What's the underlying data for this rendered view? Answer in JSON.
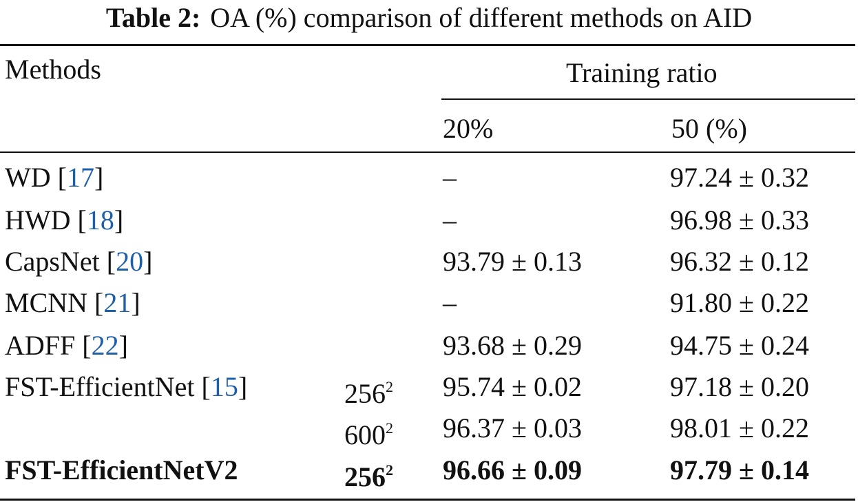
{
  "caption": {
    "label": "Table 2:",
    "text": "OA (%) comparison of different methods on AID"
  },
  "header": {
    "methods": "Methods",
    "training_ratio": "Training ratio",
    "col_20": "20%",
    "col_50": "50 (%)"
  },
  "rows": [
    {
      "method": "WD",
      "ref": "17",
      "size": "",
      "r20": "–",
      "r50": "97.24 ± 0.32"
    },
    {
      "method": "HWD",
      "ref": "18",
      "size": "",
      "r20": "–",
      "r50": "96.98 ± 0.33"
    },
    {
      "method": "CapsNet",
      "ref": "20",
      "size": "",
      "r20": "93.79 ± 0.13",
      "r50": "96.32 ± 0.12"
    },
    {
      "method": "MCNN",
      "ref": "21",
      "size": "",
      "r20": "–",
      "r50": "91.80 ± 0.22"
    },
    {
      "method": "ADFF",
      "ref": "22",
      "size": "",
      "r20": "93.68 ± 0.29",
      "r50": "94.75 ± 0.24"
    },
    {
      "method": "FST-EfficientNet",
      "ref": "15",
      "size": "256",
      "r20": "95.74 ± 0.02",
      "r50": "97.18 ± 0.20"
    },
    {
      "method": "",
      "ref": "",
      "size": "600",
      "r20": "96.37 ± 0.03",
      "r50": "98.01 ± 0.22"
    },
    {
      "method": "FST-EfficientNetV2",
      "ref": "",
      "size": "256",
      "r20": "96.66 ± 0.09",
      "r50": "97.79 ± 0.14"
    }
  ],
  "size_exponent": "2"
}
